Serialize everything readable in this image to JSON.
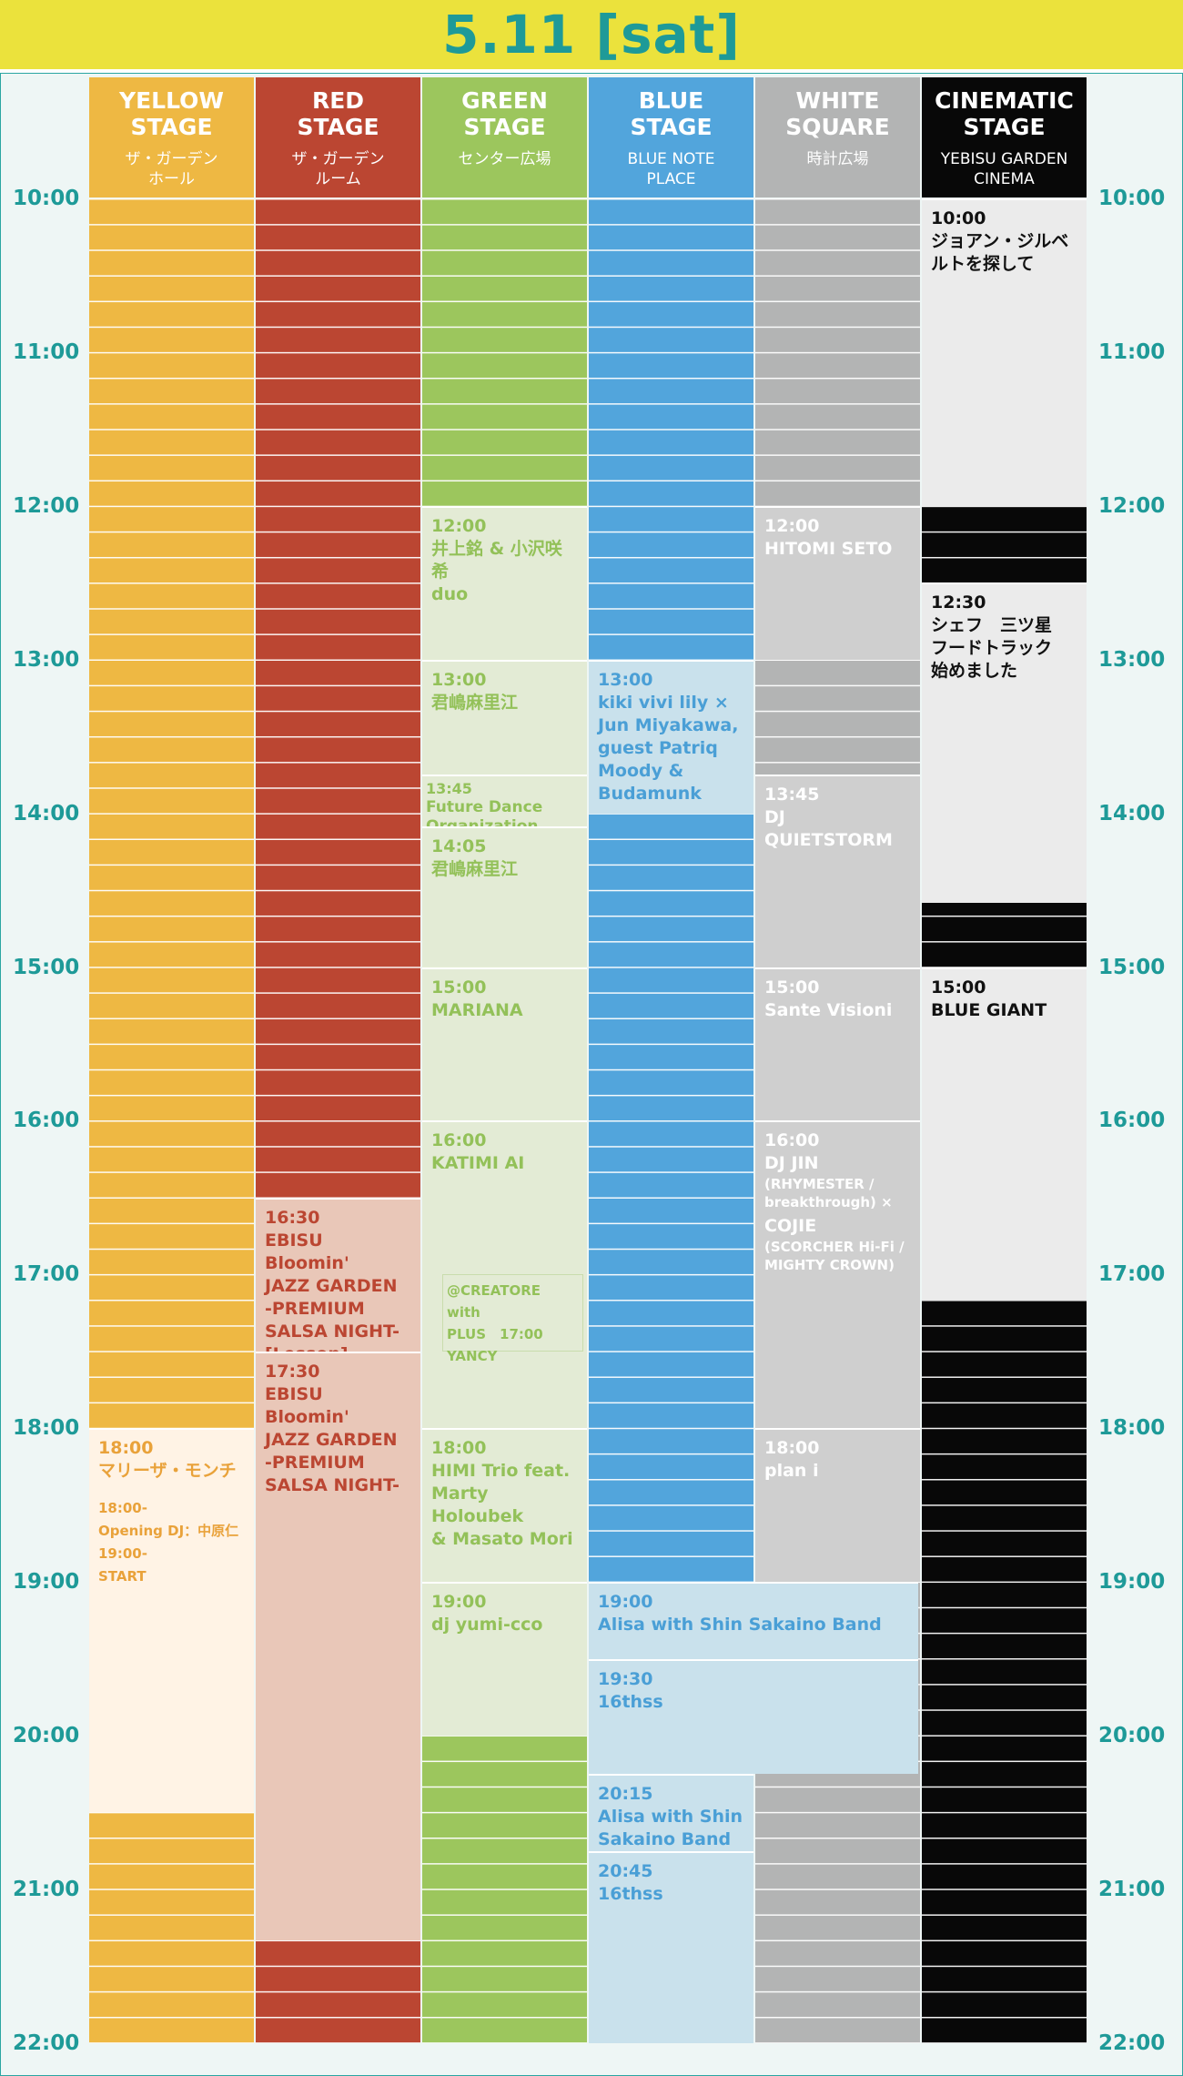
{
  "header": {
    "title": "5.11 [sat]"
  },
  "colors": {
    "yellow": "#eeb843",
    "red": "#bb4632",
    "green": "#9cc65d",
    "blue": "#52a5dc",
    "white_square": "#b3b4b4",
    "cinematic": "#080808",
    "accent": "#1e9a98",
    "banner": "#ebe23c"
  },
  "time_labels": [
    "10:00",
    "11:00",
    "12:00",
    "13:00",
    "14:00",
    "15:00",
    "16:00",
    "17:00",
    "18:00",
    "19:00",
    "20:00",
    "21:00",
    "22:00"
  ],
  "stages": [
    {
      "id": "yellow",
      "name": "YELLOW\nSTAGE",
      "venue": "ザ・ガーデン\nホール"
    },
    {
      "id": "red",
      "name": "RED\nSTAGE",
      "venue": "ザ・ガーデン\nルーム"
    },
    {
      "id": "green",
      "name": "GREEN\nSTAGE",
      "venue": "センター広場"
    },
    {
      "id": "blue",
      "name": "BLUE\nSTAGE",
      "venue": "BLUE NOTE\nPLACE"
    },
    {
      "id": "white",
      "name": "WHITE\nSQUARE",
      "venue": "時計広場"
    },
    {
      "id": "cinematic",
      "name": "CINEMATIC\nSTAGE",
      "venue": "YEBISU GARDEN\nCINEMA"
    }
  ],
  "events": {
    "yellow": [
      {
        "start": "18:00",
        "end": "20:30",
        "time": "18:00",
        "title": "マリーザ・モンチ",
        "note": "18:00-\nOpening DJ：中原仁\n19:00-\nSTART"
      }
    ],
    "red": [
      {
        "start": "16:30",
        "end": "17:30",
        "time": "16:30",
        "title": "EBISU Bloomin'\nJAZZ GARDEN\n-PREMIUM\nSALSA NIGHT-\n[Lesson]"
      },
      {
        "start": "17:30",
        "end": "21:20",
        "time": "17:30",
        "title": "EBISU Bloomin'\nJAZZ GARDEN\n-PREMIUM\nSALSA NIGHT-"
      }
    ],
    "green": [
      {
        "start": "12:00",
        "end": "13:00",
        "time": "12:00",
        "title": "井上銘 & 小沢咲希\nduo"
      },
      {
        "start": "13:00",
        "end": "13:45",
        "time": "13:00",
        "title": "君嶋麻里江"
      },
      {
        "start": "13:45",
        "end": "14:05",
        "time": "13:45",
        "title": "Future Dance\nOrganization\n+mini Salsa Lesson",
        "small": true
      },
      {
        "start": "14:05",
        "end": "15:00",
        "time": "14:05",
        "title": "君嶋麻里江"
      },
      {
        "start": "15:00",
        "end": "16:00",
        "time": "15:00",
        "title": "MARIANA"
      },
      {
        "start": "16:00",
        "end": "18:00",
        "time": "16:00",
        "title": "KATIMI AI"
      },
      {
        "start": "18:00",
        "end": "19:00",
        "time": "18:00",
        "title": "HIMI Trio feat.\nMarty Holoubek\n& Masato Mori"
      },
      {
        "start": "19:00",
        "end": "20:00",
        "time": "19:00",
        "title": "dj yumi-cco"
      }
    ],
    "green_sub": {
      "start": "17:00",
      "end": "17:30",
      "text": "@CREATORE with\nPLUS　17:00\nYANCY"
    },
    "blue": [
      {
        "start": "13:00",
        "end": "14:00",
        "time": "13:00",
        "title": "kiki vivi lily ×\nJun Miyakawa,\nguest Patriq\nMoody &\nBudamunk"
      },
      {
        "start": "20:15",
        "end": "20:45",
        "time": "20:15",
        "title": "Alisa with Shin\nSakaino Band"
      },
      {
        "start": "20:45",
        "end": "22:00",
        "time": "20:45",
        "title": "16thss"
      }
    ],
    "white": [
      {
        "start": "12:00",
        "end": "13:00",
        "time": "12:00",
        "title": "HITOMI SETO"
      },
      {
        "start": "13:45",
        "end": "15:00",
        "time": "13:45",
        "title": "DJ\nQUIETSTORM"
      },
      {
        "start": "15:00",
        "end": "16:00",
        "time": "15:00",
        "title": "Sante Visioni"
      },
      {
        "start": "16:00",
        "end": "18:00",
        "time": "16:00",
        "title": "DJ JIN",
        "note": "(RHYMESTER /\nbreakthrough) ×",
        "title2": "COJIE",
        "note2": "(SCORCHER Hi-Fi /\nMIGHTY CROWN)"
      },
      {
        "start": "18:00",
        "end": "19:00",
        "time": "18:00",
        "title": "plan i"
      }
    ],
    "blue_white": [
      {
        "start": "19:00",
        "end": "19:30",
        "time": "19:00",
        "title": "Alisa with Shin Sakaino Band"
      },
      {
        "start": "19:30",
        "end": "20:15",
        "time": "19:30",
        "title": "16thss"
      }
    ],
    "cinematic": [
      {
        "start": "10:00",
        "end": "12:00",
        "time": "10:00",
        "title": "ジョアン・ジルベ\nルトを探して"
      },
      {
        "start": "12:30",
        "end": "14:35",
        "time": "12:30",
        "title": "シェフ　三ツ星\nフードトラック\n始めました"
      },
      {
        "start": "15:00",
        "end": "17:10",
        "time": "15:00",
        "title": "BLUE GIANT"
      }
    ]
  }
}
